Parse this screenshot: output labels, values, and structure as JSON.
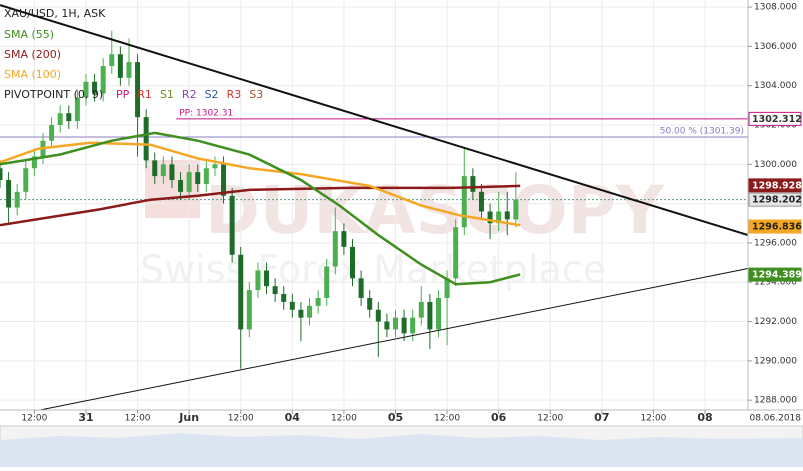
{
  "chart_data": {
    "type": "candlestick",
    "title": "XAU/USD, 1H, ASK",
    "legend": [
      {
        "text": "SMA (55)",
        "color": "#3f8f1f"
      },
      {
        "text": "SMA (200)",
        "color": "#8b1a1a"
      },
      {
        "text": "SMA (100)",
        "color": "#f5a623"
      }
    ],
    "pivot_legend": {
      "text": "PIVOTPOINT (0, 9)",
      "items": [
        {
          "text": "PP",
          "color": "#c71585"
        },
        {
          "text": "R1",
          "color": "#d0342c"
        },
        {
          "text": "S1",
          "color": "#6b8e23"
        },
        {
          "text": "R2",
          "color": "#8e44ad"
        },
        {
          "text": "S2",
          "color": "#2c5aa0"
        },
        {
          "text": "R3",
          "color": "#d0342c"
        },
        {
          "text": "S3",
          "color": "#a0522d"
        }
      ]
    },
    "watermark": [
      "DUKASCOPY",
      "Swiss Forex Marketplace"
    ],
    "xlim": [
      0,
      174
    ],
    "ylim": [
      1287.5,
      1308.36
    ],
    "xticks": [
      {
        "value": 8,
        "label": "12:00"
      },
      {
        "value": 20,
        "label": "31"
      },
      {
        "value": 32,
        "label": "12:00"
      },
      {
        "value": 44,
        "label": "Jun"
      },
      {
        "value": 56,
        "label": "12:00"
      },
      {
        "value": 68,
        "label": "04"
      },
      {
        "value": 80,
        "label": "12:00"
      },
      {
        "value": 92,
        "label": "05"
      },
      {
        "value": 104,
        "label": "12:00"
      },
      {
        "value": 116,
        "label": "06"
      },
      {
        "value": 128,
        "label": "12:00"
      },
      {
        "value": 140,
        "label": "07"
      },
      {
        "value": 152,
        "label": "12:00"
      },
      {
        "value": 164,
        "label": "08"
      }
    ],
    "date_label": "08.06.2018",
    "yticks": [
      {
        "value": 1288,
        "label": "1288.000"
      },
      {
        "value": 1290,
        "label": "1290.000"
      },
      {
        "value": 1292,
        "label": "1292.000"
      },
      {
        "value": 1294,
        "label": "1294.000"
      },
      {
        "value": 1296,
        "label": "1296.000"
      },
      {
        "value": 1298,
        "label": "1298.000"
      },
      {
        "value": 1300,
        "label": "1300.000"
      },
      {
        "value": 1302,
        "label": "1302.000"
      },
      {
        "value": 1304,
        "label": "1304.000"
      },
      {
        "value": 1306,
        "label": "1306.000"
      },
      {
        "value": 1308,
        "label": "1308.000"
      }
    ],
    "grid": true,
    "up_color": "#4caf50",
    "down_color": "#1e6b2a",
    "x": [
      0,
      2,
      4,
      6,
      8,
      10,
      12,
      14,
      16,
      18,
      20,
      22,
      24,
      26,
      28,
      30,
      32,
      34,
      36,
      38,
      40,
      42,
      44,
      46,
      48,
      50,
      52,
      54,
      56,
      58,
      60,
      62,
      64,
      66,
      68,
      70,
      72,
      74,
      76,
      78,
      80,
      82,
      84,
      86,
      88,
      90,
      92,
      94,
      96,
      98,
      100,
      102,
      104,
      106,
      108,
      110,
      112,
      114,
      116,
      118,
      120
    ],
    "open": [
      1299.8,
      1299.2,
      1297.8,
      1298.6,
      1299.8,
      1300.4,
      1301.2,
      1302.0,
      1302.6,
      1302.2,
      1303.4,
      1304.2,
      1303.6,
      1305.0,
      1305.6,
      1304.4,
      1305.2,
      1302.4,
      1300.2,
      1299.4,
      1300.0,
      1299.2,
      1298.6,
      1299.6,
      1299.0,
      1299.8,
      1300.0,
      1298.4,
      1295.4,
      1291.6,
      1293.6,
      1294.6,
      1293.8,
      1293.4,
      1293.0,
      1292.6,
      1292.2,
      1292.8,
      1293.2,
      1294.8,
      1296.6,
      1295.8,
      1294.2,
      1293.2,
      1292.6,
      1292.0,
      1291.6,
      1292.2,
      1291.4,
      1292.2,
      1293.0,
      1291.6,
      1293.2,
      1294.2,
      1296.8,
      1299.4,
      1298.6,
      1297.6,
      1297.0,
      1297.6,
      1297.2
    ],
    "high": [
      1300.2,
      1299.6,
      1299.0,
      1300.2,
      1300.8,
      1301.6,
      1302.4,
      1303.0,
      1303.0,
      1303.8,
      1304.6,
      1304.6,
      1305.4,
      1306.8,
      1306.0,
      1306.4,
      1305.6,
      1302.8,
      1300.6,
      1300.4,
      1300.4,
      1299.6,
      1300.0,
      1300.0,
      1300.2,
      1300.4,
      1300.4,
      1298.8,
      1295.8,
      1294.0,
      1295.0,
      1295.0,
      1294.2,
      1293.8,
      1293.4,
      1293.0,
      1293.2,
      1293.6,
      1295.2,
      1297.8,
      1297.0,
      1296.2,
      1294.6,
      1293.6,
      1293.0,
      1292.4,
      1292.6,
      1292.6,
      1292.6,
      1293.8,
      1293.4,
      1293.6,
      1294.6,
      1297.2,
      1300.8,
      1299.8,
      1299.0,
      1298.0,
      1298.6,
      1298.6,
      1299.6
    ],
    "low": [
      1298.8,
      1297.0,
      1297.4,
      1298.2,
      1299.4,
      1300.0,
      1300.8,
      1301.6,
      1301.8,
      1301.8,
      1303.0,
      1303.2,
      1303.2,
      1304.6,
      1304.0,
      1304.0,
      1300.4,
      1299.8,
      1299.0,
      1299.0,
      1298.8,
      1298.2,
      1298.2,
      1298.6,
      1298.6,
      1299.4,
      1298.0,
      1295.0,
      1289.6,
      1291.2,
      1293.2,
      1293.4,
      1293.0,
      1292.6,
      1292.2,
      1291.0,
      1291.8,
      1292.4,
      1292.8,
      1294.4,
      1295.4,
      1293.8,
      1292.8,
      1292.2,
      1290.2,
      1291.2,
      1291.2,
      1291.0,
      1291.0,
      1291.8,
      1290.6,
      1291.2,
      1290.8,
      1293.8,
      1296.4,
      1298.2,
      1297.2,
      1296.2,
      1296.6,
      1296.4,
      1296.8
    ],
    "close": [
      1299.2,
      1297.8,
      1298.6,
      1299.8,
      1300.4,
      1301.2,
      1302.0,
      1302.6,
      1302.2,
      1303.4,
      1304.2,
      1303.6,
      1305.0,
      1305.6,
      1304.4,
      1305.2,
      1302.4,
      1300.2,
      1299.4,
      1300.0,
      1299.2,
      1298.6,
      1299.6,
      1299.0,
      1299.8,
      1300.0,
      1298.4,
      1295.4,
      1291.6,
      1293.6,
      1294.6,
      1293.8,
      1293.4,
      1293.0,
      1292.6,
      1292.2,
      1292.8,
      1293.2,
      1294.8,
      1296.6,
      1295.8,
      1294.2,
      1293.2,
      1292.6,
      1292.0,
      1291.6,
      1292.2,
      1291.4,
      1292.2,
      1293.0,
      1291.6,
      1293.2,
      1294.2,
      1296.8,
      1299.4,
      1298.6,
      1297.6,
      1297.0,
      1297.6,
      1297.2,
      1298.2
    ],
    "sma": [
      {
        "name": "SMA (200)",
        "color": "#8b1a1a",
        "x": [
          0,
          23,
          35,
          46,
          58,
          81,
          105,
          121
        ],
        "values": [
          1296.9,
          1297.7,
          1298.2,
          1298.4,
          1298.7,
          1298.8,
          1298.8,
          1298.9
        ]
      },
      {
        "name": "SMA (100)",
        "color": "#f5a623",
        "x": [
          0,
          9,
          21,
          35,
          46,
          58,
          70,
          86,
          98,
          107,
          121
        ],
        "values": [
          1300.1,
          1300.8,
          1301.1,
          1301.0,
          1300.3,
          1299.8,
          1299.5,
          1298.9,
          1297.9,
          1297.4,
          1296.9
        ]
      },
      {
        "name": "SMA (55)",
        "color": "#3f8f1f",
        "x": [
          0,
          14,
          26,
          36,
          46,
          58,
          70,
          79,
          88,
          98,
          106,
          114,
          121
        ],
        "values": [
          1300.0,
          1300.5,
          1301.2,
          1301.6,
          1301.2,
          1300.5,
          1299.2,
          1297.9,
          1296.4,
          1294.9,
          1293.9,
          1294.0,
          1294.4
        ]
      }
    ],
    "trendlines": [
      {
        "x": [
          0,
          174
        ],
        "values": [
          1308.1,
          1296.4
        ],
        "color": "#111111",
        "width": 2
      },
      {
        "x": [
          9.3,
          174
        ],
        "values": [
          1287.5,
          1294.7
        ],
        "color": "#111111",
        "width": 1
      }
    ],
    "levels": [
      {
        "value": 1302.31,
        "label": "PP: 1302.31",
        "color": "#c71585",
        "from": 41
      },
      {
        "value": 1301.39,
        "label": "50.00 % (1301.39)",
        "color": "#8e7cc3",
        "from": 0
      }
    ],
    "current_price": 1298.202,
    "badges": [
      {
        "value": 1302.312,
        "fill": "#ffffff",
        "stroke": "#c71585",
        "text_color": "#333333"
      },
      {
        "value": 1298.928,
        "fill": "#8b1a1a",
        "stroke": "#8b1a1a",
        "text_color": "#ffffff"
      },
      {
        "value": 1298.202,
        "fill": "#e6e6e6",
        "stroke": "#999999",
        "text_color": "#222222"
      },
      {
        "value": 1296.836,
        "fill": "#f5a623",
        "stroke": "#f5a623",
        "text_color": "#222222"
      },
      {
        "value": 1294.389,
        "fill": "#3f8f1f",
        "stroke": "#3f8f1f",
        "text_color": "#ffffff"
      }
    ]
  }
}
